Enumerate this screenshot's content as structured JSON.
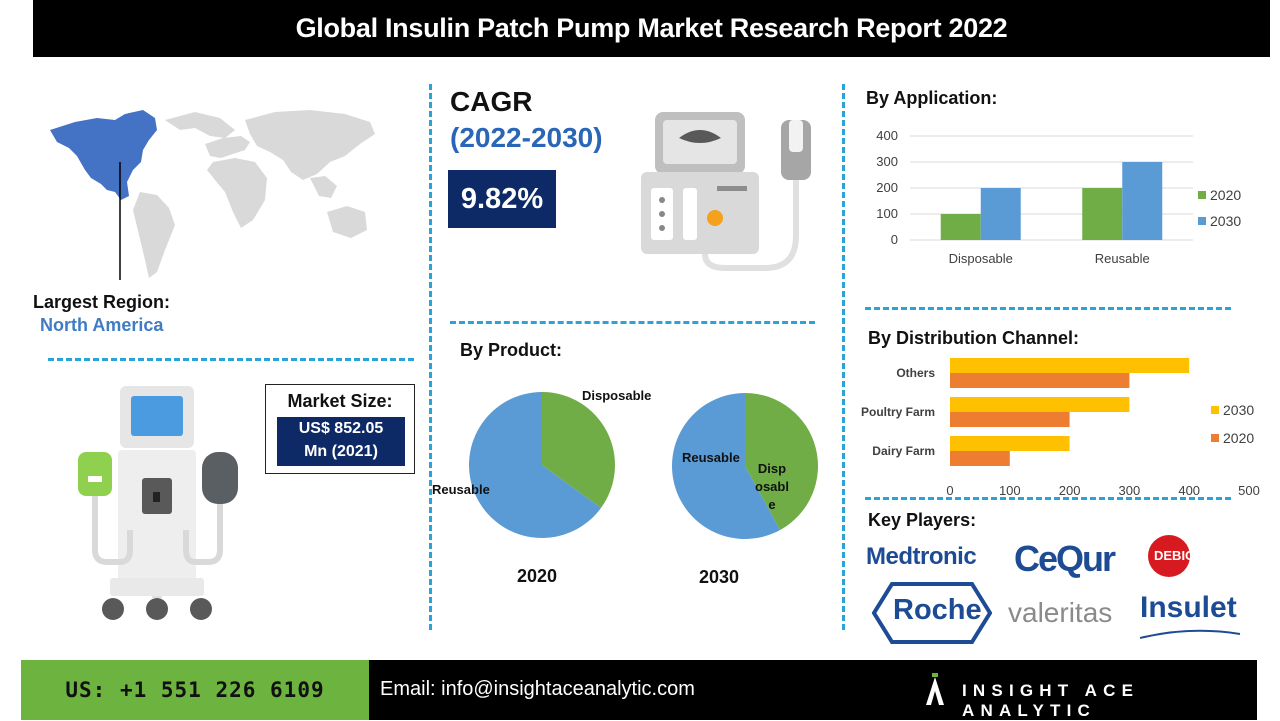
{
  "title": "Global Insulin Patch Pump Market Research Report 2022",
  "cagr": {
    "label": "CAGR",
    "years": "(2022-2030)",
    "value": "9.82%"
  },
  "region": {
    "label": "Largest Region:",
    "value": "North America"
  },
  "market_size": {
    "label": "Market Size:",
    "value_line1": "US$ 852.05",
    "value_line2": "Mn (2021)"
  },
  "colors": {
    "navy": "#0e2a66",
    "blue": "#5b9bd5",
    "green": "#70ad47",
    "orange": "#ed7d31",
    "yellow": "#ffc000",
    "accent": "#29a3d8"
  },
  "by_product": {
    "heading": "By Product:",
    "pie_2020": {
      "year": "2020",
      "label_disposable": "Disposable",
      "label_reusable": "Reusable"
    },
    "pie_2030": {
      "year": "2030",
      "label_disposable": "Disposable",
      "label_reusable": "Reusable"
    }
  },
  "by_application": {
    "heading": "By Application:"
  },
  "by_distribution": {
    "heading": "By Distribution Channel:"
  },
  "key_players": {
    "heading": "Key Players:",
    "names": [
      "Medtronic",
      "CeQur",
      "DEBIOTECH",
      "Roche",
      "valeritas",
      "Insulet"
    ]
  },
  "footer": {
    "phone": "US: +1 551 226 6109",
    "email": "Email: info@insightaceanalytic.com",
    "brand": "INSIGHT ACE ANALYTIC"
  },
  "chart_data": [
    {
      "type": "pie",
      "title": "2020",
      "categories": [
        "Disposable",
        "Reusable"
      ],
      "values": [
        35,
        65
      ]
    },
    {
      "type": "pie",
      "title": "2030",
      "categories": [
        "Disposable",
        "Reusable"
      ],
      "values": [
        42,
        58
      ]
    },
    {
      "type": "bar",
      "title": "By Application:",
      "categories": [
        "Disposable",
        "Reusable"
      ],
      "series": [
        {
          "name": "2020",
          "values": [
            100,
            200
          ]
        },
        {
          "name": "2030",
          "values": [
            200,
            300
          ]
        }
      ],
      "yticks": [
        "0",
        "100",
        "200",
        "300",
        "400"
      ],
      "ylim": [
        0,
        400
      ],
      "legend": "right"
    },
    {
      "type": "bar",
      "orientation": "horizontal",
      "title": "By Distribution Channel:",
      "categories": [
        "Others",
        "Poultry Farm",
        "Dairy Farm"
      ],
      "series": [
        {
          "name": "2030",
          "values": [
            400,
            300,
            200
          ]
        },
        {
          "name": "2020",
          "values": [
            300,
            200,
            100
          ]
        }
      ],
      "xticks": [
        "0",
        "100",
        "200",
        "300",
        "400",
        "500"
      ],
      "xlim": [
        0,
        500
      ],
      "legend": "right"
    }
  ]
}
